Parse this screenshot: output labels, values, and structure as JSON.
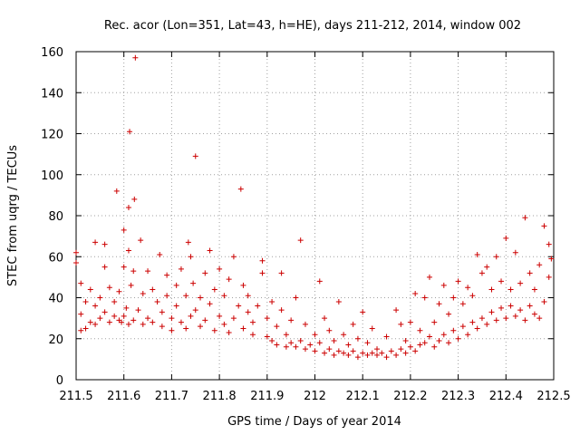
{
  "chart_data": {
    "type": "scatter",
    "title": "Rec. acor (Lon=351, Lat=43, h=HE), days 211-212, 2014, window 002",
    "xlabel": "GPS time / Days of year 2014",
    "ylabel": "STEC from uqrg / TECUs",
    "xlim": [
      211.5,
      212.5
    ],
    "ylim": [
      0,
      160
    ],
    "xticks": [
      "211.5",
      "211.6",
      "211.7",
      "211.8",
      "211.9",
      "212",
      "212.1",
      "212.2",
      "212.3",
      "212.4",
      "212.5"
    ],
    "yticks": [
      "0",
      "20",
      "40",
      "60",
      "80",
      "100",
      "120",
      "140",
      "160"
    ],
    "grid": true,
    "marker": "plus",
    "color": "#cc0000",
    "series": [
      {
        "points": [
          [
            211.5,
            62
          ],
          [
            211.5,
            57
          ],
          [
            211.51,
            24
          ],
          [
            211.51,
            32
          ],
          [
            211.51,
            47
          ],
          [
            211.52,
            25
          ],
          [
            211.52,
            38
          ],
          [
            211.53,
            28
          ],
          [
            211.53,
            44
          ],
          [
            211.54,
            27
          ],
          [
            211.54,
            36
          ],
          [
            211.54,
            67
          ],
          [
            211.55,
            30
          ],
          [
            211.55,
            40
          ],
          [
            211.56,
            33
          ],
          [
            211.56,
            55
          ],
          [
            211.56,
            66
          ],
          [
            211.57,
            28
          ],
          [
            211.57,
            45
          ],
          [
            211.58,
            31
          ],
          [
            211.58,
            38
          ],
          [
            211.585,
            92
          ],
          [
            211.59,
            29
          ],
          [
            211.59,
            43
          ],
          [
            211.595,
            28
          ],
          [
            211.6,
            31
          ],
          [
            211.6,
            55
          ],
          [
            211.6,
            73
          ],
          [
            211.605,
            35
          ],
          [
            211.61,
            27
          ],
          [
            211.61,
            63
          ],
          [
            211.61,
            84
          ],
          [
            211.612,
            121
          ],
          [
            211.615,
            46
          ],
          [
            211.62,
            29
          ],
          [
            211.62,
            53
          ],
          [
            211.622,
            88
          ],
          [
            211.624,
            157
          ],
          [
            211.63,
            34
          ],
          [
            211.635,
            68
          ],
          [
            211.64,
            27
          ],
          [
            211.64,
            42
          ],
          [
            211.65,
            30
          ],
          [
            211.65,
            53
          ],
          [
            211.66,
            28
          ],
          [
            211.66,
            44
          ],
          [
            211.67,
            38
          ],
          [
            211.675,
            61
          ],
          [
            211.68,
            26
          ],
          [
            211.68,
            33
          ],
          [
            211.69,
            41
          ],
          [
            211.69,
            51
          ],
          [
            211.7,
            24
          ],
          [
            211.7,
            30
          ],
          [
            211.71,
            36
          ],
          [
            211.71,
            46
          ],
          [
            211.72,
            28
          ],
          [
            211.72,
            54
          ],
          [
            211.73,
            25
          ],
          [
            211.73,
            41
          ],
          [
            211.735,
            67
          ],
          [
            211.74,
            31
          ],
          [
            211.74,
            60
          ],
          [
            211.745,
            47
          ],
          [
            211.75,
            109
          ],
          [
            211.75,
            34
          ],
          [
            211.76,
            26
          ],
          [
            211.76,
            40
          ],
          [
            211.77,
            29
          ],
          [
            211.77,
            52
          ],
          [
            211.78,
            37
          ],
          [
            211.78,
            63
          ],
          [
            211.79,
            24
          ],
          [
            211.79,
            44
          ],
          [
            211.8,
            31
          ],
          [
            211.8,
            54
          ],
          [
            211.81,
            27
          ],
          [
            211.81,
            41
          ],
          [
            211.82,
            23
          ],
          [
            211.82,
            49
          ],
          [
            211.83,
            30
          ],
          [
            211.83,
            60
          ],
          [
            211.84,
            36
          ],
          [
            211.845,
            93
          ],
          [
            211.85,
            25
          ],
          [
            211.85,
            46
          ],
          [
            211.86,
            33
          ],
          [
            211.86,
            41
          ],
          [
            211.87,
            22
          ],
          [
            211.87,
            28
          ],
          [
            211.88,
            36
          ],
          [
            211.89,
            52
          ],
          [
            211.89,
            58
          ],
          [
            211.9,
            21
          ],
          [
            211.9,
            30
          ],
          [
            211.91,
            19
          ],
          [
            211.91,
            38
          ],
          [
            211.92,
            17
          ],
          [
            211.92,
            26
          ],
          [
            211.93,
            34
          ],
          [
            211.93,
            52
          ],
          [
            211.94,
            16
          ],
          [
            211.94,
            22
          ],
          [
            211.95,
            18
          ],
          [
            211.95,
            29
          ],
          [
            211.96,
            16
          ],
          [
            211.96,
            40
          ],
          [
            211.97,
            19
          ],
          [
            211.97,
            68
          ],
          [
            211.98,
            15
          ],
          [
            211.98,
            27
          ],
          [
            211.99,
            17
          ],
          [
            212.0,
            14
          ],
          [
            212.0,
            22
          ],
          [
            212.01,
            18
          ],
          [
            212.01,
            48
          ],
          [
            212.02,
            13
          ],
          [
            212.02,
            30
          ],
          [
            212.03,
            15
          ],
          [
            212.03,
            24
          ],
          [
            212.04,
            12
          ],
          [
            212.04,
            19
          ],
          [
            212.05,
            14
          ],
          [
            212.05,
            38
          ],
          [
            212.06,
            13
          ],
          [
            212.06,
            22
          ],
          [
            212.07,
            12
          ],
          [
            212.07,
            17
          ],
          [
            212.08,
            14
          ],
          [
            212.08,
            27
          ],
          [
            212.09,
            11
          ],
          [
            212.09,
            20
          ],
          [
            212.1,
            13
          ],
          [
            212.1,
            33
          ],
          [
            212.11,
            12
          ],
          [
            212.11,
            18
          ],
          [
            212.12,
            13
          ],
          [
            212.12,
            25
          ],
          [
            212.13,
            12
          ],
          [
            212.13,
            15
          ],
          [
            212.14,
            13
          ],
          [
            212.15,
            11
          ],
          [
            212.15,
            21
          ],
          [
            212.16,
            14
          ],
          [
            212.17,
            12
          ],
          [
            212.17,
            34
          ],
          [
            212.18,
            15
          ],
          [
            212.18,
            27
          ],
          [
            212.19,
            13
          ],
          [
            212.19,
            19
          ],
          [
            212.2,
            16
          ],
          [
            212.2,
            28
          ],
          [
            212.21,
            14
          ],
          [
            212.21,
            42
          ],
          [
            212.22,
            17
          ],
          [
            212.22,
            24
          ],
          [
            212.23,
            40
          ],
          [
            212.23,
            18
          ],
          [
            212.24,
            21
          ],
          [
            212.24,
            50
          ],
          [
            212.25,
            16
          ],
          [
            212.25,
            28
          ],
          [
            212.26,
            19
          ],
          [
            212.26,
            37
          ],
          [
            212.27,
            22
          ],
          [
            212.27,
            46
          ],
          [
            212.28,
            18
          ],
          [
            212.28,
            32
          ],
          [
            212.29,
            24
          ],
          [
            212.29,
            40
          ],
          [
            212.3,
            20
          ],
          [
            212.3,
            48
          ],
          [
            212.31,
            26
          ],
          [
            212.31,
            37
          ],
          [
            212.32,
            22
          ],
          [
            212.32,
            45
          ],
          [
            212.33,
            28
          ],
          [
            212.33,
            41
          ],
          [
            212.34,
            25
          ],
          [
            212.34,
            61
          ],
          [
            212.35,
            30
          ],
          [
            212.35,
            52
          ],
          [
            212.36,
            27
          ],
          [
            212.36,
            55
          ],
          [
            212.37,
            33
          ],
          [
            212.37,
            44
          ],
          [
            212.38,
            29
          ],
          [
            212.38,
            60
          ],
          [
            212.39,
            35
          ],
          [
            212.39,
            48
          ],
          [
            212.4,
            30
          ],
          [
            212.4,
            69
          ],
          [
            212.41,
            36
          ],
          [
            212.41,
            44
          ],
          [
            212.42,
            31
          ],
          [
            212.42,
            62
          ],
          [
            212.43,
            34
          ],
          [
            212.43,
            47
          ],
          [
            212.44,
            29
          ],
          [
            212.44,
            79
          ],
          [
            212.45,
            36
          ],
          [
            212.45,
            52
          ],
          [
            212.46,
            32
          ],
          [
            212.46,
            44
          ],
          [
            212.47,
            30
          ],
          [
            212.47,
            56
          ],
          [
            212.48,
            38
          ],
          [
            212.48,
            75
          ],
          [
            212.49,
            50
          ],
          [
            212.49,
            66
          ],
          [
            212.495,
            59
          ]
        ]
      }
    ]
  }
}
